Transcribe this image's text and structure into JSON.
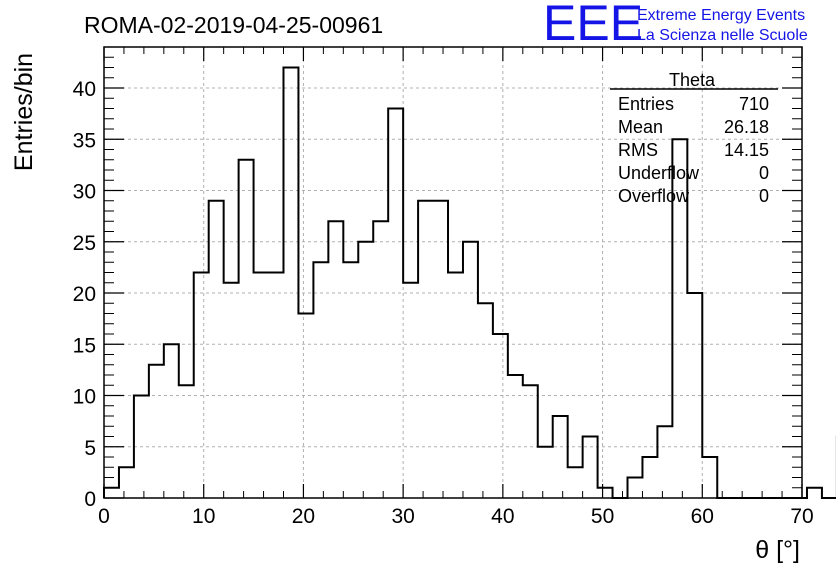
{
  "chart_data": {
    "type": "bar",
    "title": "ROMA-02-2019-04-25-00961",
    "xlabel": "θ [°]",
    "ylabel": "Entries/bin",
    "xlim": [
      0,
      70
    ],
    "ylim": [
      0,
      44
    ],
    "grid": true,
    "bin_width": 1.5,
    "bin_start": 0,
    "values": [
      1,
      3,
      10,
      13,
      15,
      11,
      22,
      29,
      21,
      33,
      22,
      22,
      42,
      18,
      23,
      27,
      23,
      25,
      27,
      38,
      21,
      29,
      29,
      22,
      25,
      19,
      16,
      12,
      11,
      5,
      8,
      3,
      6,
      1,
      0,
      2,
      4,
      7,
      35,
      20,
      4,
      0,
      0,
      0,
      0,
      0,
      0,
      1,
      0,
      6
    ],
    "x_ticks": [
      "0",
      "10",
      "20",
      "30",
      "40",
      "50",
      "60",
      "70"
    ],
    "y_ticks": [
      "0",
      "5",
      "10",
      "15",
      "20",
      "25",
      "30",
      "35",
      "40"
    ],
    "stats_box": {
      "title": "Theta",
      "rows": [
        {
          "label": "Entries",
          "value": "710"
        },
        {
          "label": "Mean",
          "value": "26.18"
        },
        {
          "label": "RMS",
          "value": "14.15"
        },
        {
          "label": "Underflow",
          "value": "0"
        },
        {
          "label": "Overflow",
          "value": "0"
        }
      ]
    },
    "logo": {
      "mark": "EEE",
      "line1": "Extreme Energy Events",
      "line2": "La Scienza nelle Scuole",
      "color": "#1414e6"
    }
  }
}
